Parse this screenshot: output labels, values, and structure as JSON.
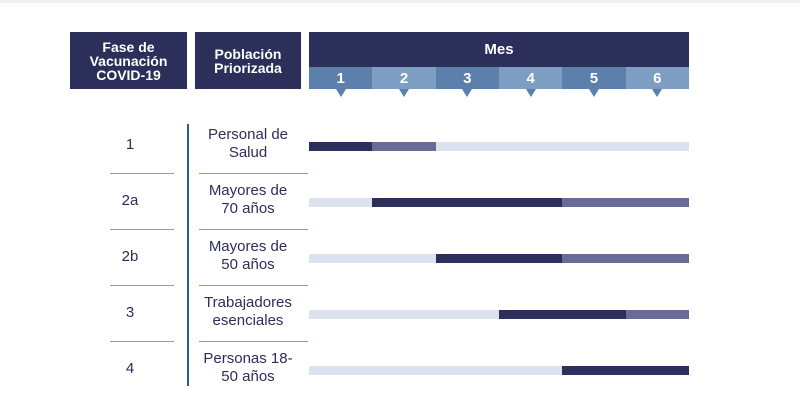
{
  "header": {
    "phase_title": "Fase de\nVacunación\nCOVID-19",
    "population_title": "Población\nPriorizada",
    "month_title": "Mes"
  },
  "colors": {
    "header_bg": "#2b2f5a",
    "month_odd": "#5b80ac",
    "month_even": "#7e9dc3",
    "track": "#dde3ee",
    "active": "#2b2f5a",
    "continuing": "#6a6b94"
  },
  "chart_data": {
    "type": "gantt",
    "title": "",
    "months": [
      "1",
      "2",
      "3",
      "4",
      "5",
      "6"
    ],
    "legend": [],
    "rows": [
      {
        "phase": "1",
        "population": "Personal de\nSalud",
        "segments": [
          {
            "start_month": 1,
            "end_month": 1,
            "status": "active"
          },
          {
            "start_month": 2,
            "end_month": 2,
            "status": "continuing"
          }
        ]
      },
      {
        "phase": "2a",
        "population": "Mayores de\n70 años",
        "segments": [
          {
            "start_month": 2,
            "end_month": 4,
            "status": "active"
          },
          {
            "start_month": 5,
            "end_month": 6,
            "status": "continuing"
          }
        ]
      },
      {
        "phase": "2b",
        "population": "Mayores de\n50 años",
        "segments": [
          {
            "start_month": 3,
            "end_month": 4,
            "status": "active"
          },
          {
            "start_month": 5,
            "end_month": 6,
            "status": "continuing"
          }
        ]
      },
      {
        "phase": "3",
        "population": "Trabajadores\nesenciales",
        "segments": [
          {
            "start_month": 4,
            "end_month": 5,
            "status": "active"
          },
          {
            "start_month": 6,
            "end_month": 6,
            "status": "continuing"
          }
        ]
      },
      {
        "phase": "4",
        "population": "Personas 18-\n50 años",
        "segments": [
          {
            "start_month": 5,
            "end_month": 6,
            "status": "active"
          }
        ]
      }
    ]
  }
}
